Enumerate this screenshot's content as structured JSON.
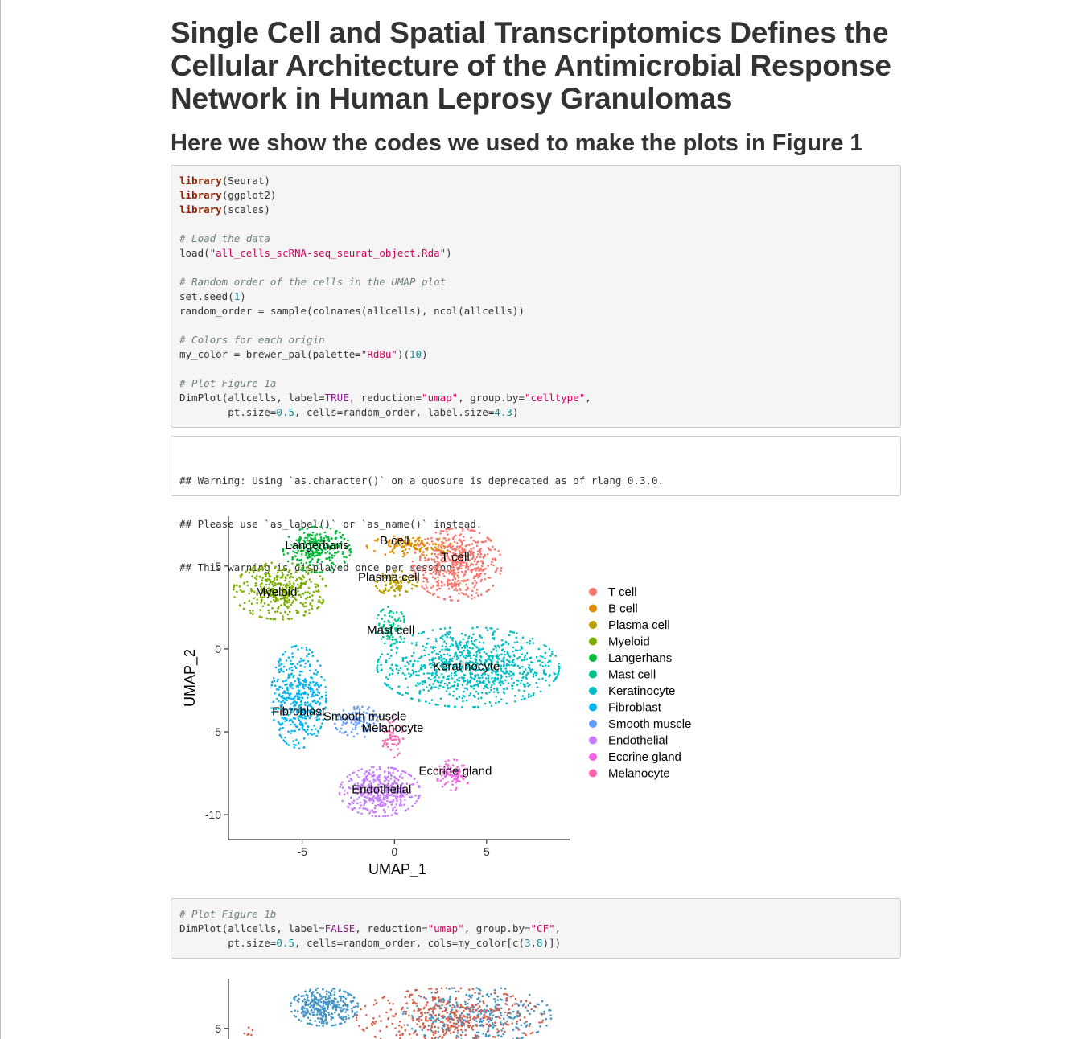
{
  "page": {
    "title": "Single Cell and Spatial Transcriptomics Defines the Cellular Architecture of the Antimicrobial Response Network in Human Leprosy Granulomas",
    "subtitle": "Here we show the codes we used to make the plots in Figure 1"
  },
  "code_block_1": [
    [
      {
        "t": "library",
        "c": "kw"
      },
      {
        "t": "(Seurat)"
      }
    ],
    [
      {
        "t": "library",
        "c": "kw"
      },
      {
        "t": "(ggplot2)"
      }
    ],
    [
      {
        "t": "library",
        "c": "kw"
      },
      {
        "t": "(scales)"
      }
    ],
    [],
    [
      {
        "t": "# Load the data",
        "c": "cm"
      }
    ],
    [
      {
        "t": "load("
      },
      {
        "t": "\"all_cells_scRNA-seq_seurat_object.Rda\"",
        "c": "st"
      },
      {
        "t": ")"
      }
    ],
    [],
    [
      {
        "t": "# Random order of the cells in the UMAP plot",
        "c": "cm"
      }
    ],
    [
      {
        "t": "set.seed("
      },
      {
        "t": "1",
        "c": "nm"
      },
      {
        "t": ")"
      }
    ],
    [
      {
        "t": "random_order = sample(colnames(allcells), ncol(allcells))"
      }
    ],
    [],
    [
      {
        "t": "# Colors for each origin",
        "c": "cm"
      }
    ],
    [
      {
        "t": "my_color = brewer_pal(palette="
      },
      {
        "t": "\"RdBu\"",
        "c": "st"
      },
      {
        "t": ")("
      },
      {
        "t": "10",
        "c": "nm"
      },
      {
        "t": ")"
      }
    ],
    [],
    [
      {
        "t": "# Plot Figure 1a",
        "c": "cm"
      }
    ],
    [
      {
        "t": "DimPlot(allcells, label="
      },
      {
        "t": "TRUE",
        "c": "lg"
      },
      {
        "t": ", reduction="
      },
      {
        "t": "\"umap\"",
        "c": "st"
      },
      {
        "t": ", group.by="
      },
      {
        "t": "\"celltype\"",
        "c": "st"
      },
      {
        "t": ","
      }
    ],
    [
      {
        "t": "        pt.size="
      },
      {
        "t": "0.5",
        "c": "nm"
      },
      {
        "t": ", cells=random_order, label.size="
      },
      {
        "t": "4.3",
        "c": "nm"
      },
      {
        "t": ")"
      }
    ]
  ],
  "output_block": [
    "## Warning: Using `as.character()` on a quosure is deprecated as of rlang 0.3.0.",
    "## Please use `as_label()` or `as_name()` instead.",
    "## This warning is displayed once per session."
  ],
  "code_block_2": [
    [
      {
        "t": "# Plot Figure 1b",
        "c": "cm"
      }
    ],
    [
      {
        "t": "DimPlot(allcells, label="
      },
      {
        "t": "FALSE",
        "c": "lg"
      },
      {
        "t": ", reduction="
      },
      {
        "t": "\"umap\"",
        "c": "st"
      },
      {
        "t": ", group.by="
      },
      {
        "t": "\"CF\"",
        "c": "st"
      },
      {
        "t": ","
      }
    ],
    [
      {
        "t": "        pt.size="
      },
      {
        "t": "0.5",
        "c": "nm"
      },
      {
        "t": ", cells=random_order, cols=my_color[c("
      },
      {
        "t": "3",
        "c": "nm"
      },
      {
        "t": ","
      },
      {
        "t": "8",
        "c": "nm"
      },
      {
        "t": ")])"
      }
    ]
  ],
  "chart_data": [
    {
      "type": "scatter",
      "xlabel": "UMAP_1",
      "ylabel": "UMAP_2",
      "xlim": [
        -9,
        9.5
      ],
      "ylim": [
        -11.5,
        8
      ],
      "x_ticks": [
        -5,
        0,
        5
      ],
      "y_ticks": [
        5,
        0,
        -5,
        -10
      ],
      "tick_labels_x": [
        "-5",
        "0",
        "5"
      ],
      "tick_labels_y": [
        "5",
        "0",
        "-5",
        "-10"
      ],
      "legend_position": "right",
      "series": [
        {
          "name": "T cell",
          "color": "#F8766D",
          "cx": 3.4,
          "cy": 5.1,
          "rx": 2.1,
          "ry": 1.9,
          "n": 520
        },
        {
          "name": "B cell",
          "color": "#DE8C00",
          "cx": 0.8,
          "cy": 6.2,
          "rx": 2.0,
          "ry": 0.55,
          "n": 120
        },
        {
          "name": "Plasma cell",
          "color": "#B79F00",
          "cx": 0.1,
          "cy": 4.0,
          "rx": 1.0,
          "ry": 0.7,
          "n": 90
        },
        {
          "name": "Myeloid",
          "color": "#7CAE00",
          "cx": -6.2,
          "cy": 3.5,
          "rx": 2.2,
          "ry": 1.5,
          "n": 380
        },
        {
          "name": "Langerhans",
          "color": "#00BA38",
          "cx": -4.2,
          "cy": 6.0,
          "rx": 1.6,
          "ry": 1.2,
          "n": 260
        },
        {
          "name": "Mast cell",
          "color": "#00C08B",
          "cx": -0.2,
          "cy": 1.4,
          "rx": 0.7,
          "ry": 1.0,
          "n": 80
        },
        {
          "name": "Keratinocyte",
          "color": "#00BFC4",
          "cx": 4.0,
          "cy": -1.1,
          "rx": 4.3,
          "ry": 2.1,
          "n": 900
        },
        {
          "name": "Fibroblast",
          "color": "#00B4F0",
          "cx": -5.2,
          "cy": -2.9,
          "rx": 1.3,
          "ry": 2.7,
          "n": 420
        },
        {
          "name": "Smooth muscle",
          "color": "#619CFF",
          "cx": -1.8,
          "cy": -4.4,
          "rx": 1.3,
          "ry": 0.8,
          "n": 110
        },
        {
          "name": "Endothelial",
          "color": "#C77CFF",
          "cx": -0.8,
          "cy": -8.6,
          "rx": 1.9,
          "ry": 1.3,
          "n": 420
        },
        {
          "name": "Eccrine gland",
          "color": "#F564E3",
          "cx": 3.2,
          "cy": -7.6,
          "rx": 0.8,
          "ry": 0.8,
          "n": 90
        },
        {
          "name": "Melanocyte",
          "color": "#FF64B0",
          "cx": -0.1,
          "cy": -5.3,
          "rx": 0.5,
          "ry": 1.1,
          "n": 60
        }
      ],
      "labels": [
        {
          "text": "T cell",
          "x": 3.3,
          "y": 5.3
        },
        {
          "text": "B cell",
          "x": 0.0,
          "y": 6.3
        },
        {
          "text": "Plasma cell",
          "x": -0.3,
          "y": 4.1
        },
        {
          "text": "Myeloid",
          "x": -6.4,
          "y": 3.2
        },
        {
          "text": "Langerhans",
          "x": -4.2,
          "y": 6.0
        },
        {
          "text": "Mast cell",
          "x": -0.2,
          "y": 0.9
        },
        {
          "text": "Keratinocyte",
          "x": 3.9,
          "y": -1.3
        },
        {
          "text": "Fibroblast",
          "x": -5.2,
          "y": -4.0
        },
        {
          "text": "Smooth muscle",
          "x": -1.6,
          "y": -4.3
        },
        {
          "text": "Melanocyte",
          "x": -0.1,
          "y": -5.0
        },
        {
          "text": "Eccrine gland",
          "x": 3.3,
          "y": -7.6
        },
        {
          "text": "Endothelial",
          "x": -0.7,
          "y": -8.7
        }
      ]
    },
    {
      "type": "scatter",
      "xlim": [
        -9,
        9.5
      ],
      "ylim": [
        -11.5,
        8
      ],
      "y_ticks": [
        5
      ],
      "tick_labels_y": [
        "5"
      ],
      "series": [
        {
          "color": "#4393C3",
          "cx": -3.8,
          "cy": 6.3,
          "rx": 1.6,
          "ry": 1.0,
          "n": 320
        },
        {
          "color": "#4393C3",
          "cx": 4.5,
          "cy": 5.8,
          "rx": 3.5,
          "ry": 1.5,
          "n": 320
        },
        {
          "color": "#D6604D",
          "cx": 3.0,
          "cy": 5.6,
          "rx": 4.4,
          "ry": 1.6,
          "n": 420
        },
        {
          "color": "#D6604D",
          "cx": -8.0,
          "cy": 4.8,
          "rx": 0.3,
          "ry": 0.3,
          "n": 6
        }
      ]
    }
  ]
}
